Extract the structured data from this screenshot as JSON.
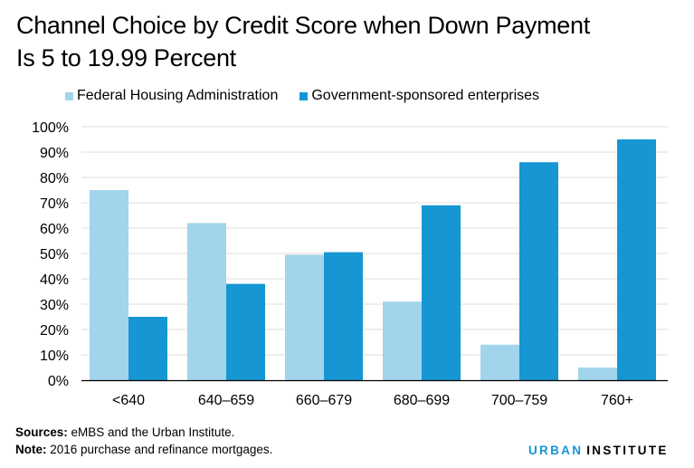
{
  "chart_data": {
    "type": "bar",
    "title": "Channel Choice by Credit Score when Down Payment Is 5 to 19.99 Percent",
    "xlabel": "",
    "ylabel": "",
    "categories": [
      "<640",
      "640–659",
      "660–679",
      "680–699",
      "700–759",
      "760+"
    ],
    "series": [
      {
        "name": "Federal Housing Administration",
        "color": "#a2d4ec",
        "values": [
          75,
          62,
          49.5,
          31,
          14,
          5
        ]
      },
      {
        "name": "Government-sponsored enterprises",
        "color": "#1696d2",
        "values": [
          25,
          38,
          50.5,
          69,
          86,
          95
        ]
      }
    ],
    "ylim": [
      0,
      100
    ],
    "yticks": [
      0,
      10,
      20,
      30,
      40,
      50,
      60,
      70,
      80,
      90,
      100
    ],
    "ytick_labels": [
      "0%",
      "10%",
      "20%",
      "30%",
      "40%",
      "50%",
      "60%",
      "70%",
      "80%",
      "90%",
      "100%"
    ],
    "grid": true,
    "legend_position": "top-left"
  },
  "title_line1": "Channel Choice by Credit Score when Down Payment",
  "title_line2": "Is 5 to 19.99 Percent",
  "footer": {
    "sources_label": "Sources:",
    "sources_text": " eMBS and the Urban Institute.",
    "note_label": "Note:",
    "note_text": " 2016 purchase and refinance mortgages."
  },
  "brand": {
    "part1": "URBAN",
    "part2": "INSTITUTE"
  }
}
